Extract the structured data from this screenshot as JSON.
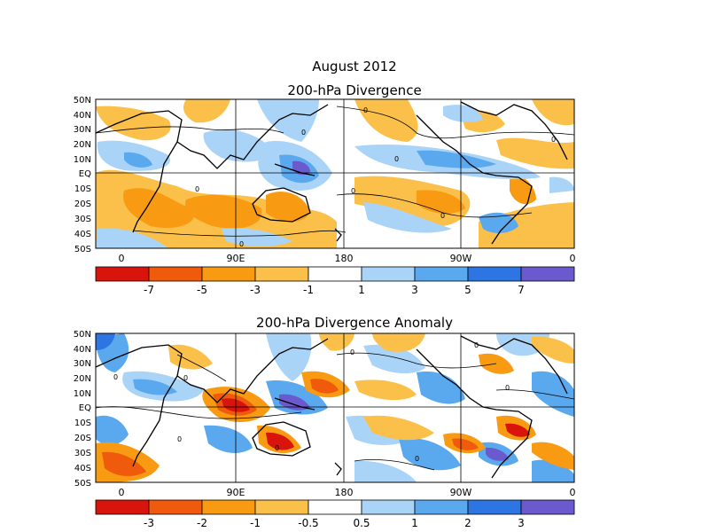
{
  "header": {
    "month_title": "August 2012"
  },
  "panels": [
    {
      "title": "200-hPa Divergence",
      "lat_labels": [
        "50N",
        "40N",
        "30N",
        "20N",
        "10N",
        "EQ",
        "10S",
        "20S",
        "30S",
        "40S",
        "50S"
      ],
      "lon_labels": [
        "0",
        "90E",
        "180",
        "90W",
        "0"
      ],
      "colorbar": {
        "colors": [
          "#d9140c",
          "#f05a0c",
          "#f89b12",
          "#fbc04a",
          "#ffffff",
          "#a9d4f7",
          "#5aa8ee",
          "#2d75e2",
          "#6a5acd"
        ],
        "labels": [
          "-7",
          "-5",
          "-3",
          "-1",
          "1",
          "3",
          "5",
          "7"
        ]
      },
      "contour_labels": [
        "0",
        "0",
        "0",
        "0",
        "0",
        "0",
        "0",
        "0"
      ],
      "fill_colors": {
        "neg_strong": "#f89b12",
        "neg_weak": "#fbc04a",
        "pos_weak": "#a9d4f7",
        "pos_mid": "#5aa8ee",
        "pos_strong": "#2d75e2",
        "pos_max": "#6a5acd"
      }
    },
    {
      "title": "200-hPa Divergence Anomaly",
      "lat_labels": [
        "50N",
        "40N",
        "30N",
        "20N",
        "10N",
        "EQ",
        "10S",
        "20S",
        "30S",
        "40S",
        "50S"
      ],
      "lon_labels": [
        "0",
        "90E",
        "180",
        "90W",
        "0"
      ],
      "colorbar": {
        "colors": [
          "#d9140c",
          "#f05a0c",
          "#f89b12",
          "#fbc04a",
          "#ffffff",
          "#a9d4f7",
          "#5aa8ee",
          "#2d75e2",
          "#6a5acd"
        ],
        "labels": [
          "-3",
          "-2",
          "-1",
          "-0.5",
          "0.5",
          "1",
          "2",
          "3"
        ]
      },
      "contour_labels": [
        "0",
        "0",
        "0",
        "0",
        "0",
        "0",
        "0",
        "0"
      ],
      "fill_colors": {
        "neg_strong": "#d9140c",
        "neg_mid": "#f05a0c",
        "neg_weak": "#f89b12",
        "neg_light": "#fbc04a",
        "pos_weak": "#a9d4f7",
        "pos_mid": "#5aa8ee",
        "pos_strong": "#2d75e2"
      }
    }
  ]
}
